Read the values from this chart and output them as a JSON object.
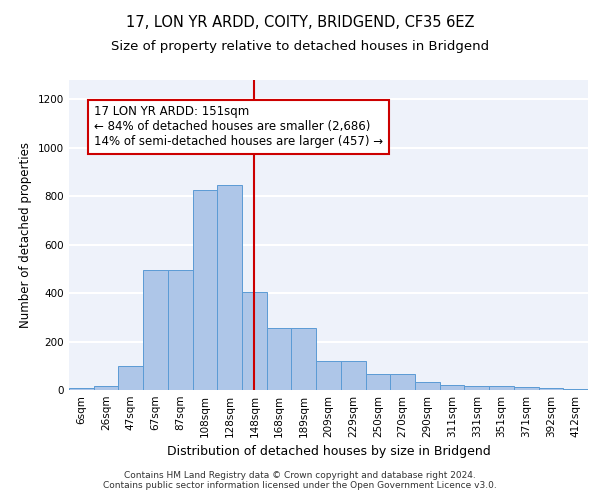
{
  "title1": "17, LON YR ARDD, COITY, BRIDGEND, CF35 6EZ",
  "title2": "Size of property relative to detached houses in Bridgend",
  "xlabel": "Distribution of detached houses by size in Bridgend",
  "ylabel": "Number of detached properties",
  "categories": [
    "6sqm",
    "26sqm",
    "47sqm",
    "67sqm",
    "87sqm",
    "108sqm",
    "128sqm",
    "148sqm",
    "168sqm",
    "189sqm",
    "209sqm",
    "229sqm",
    "250sqm",
    "270sqm",
    "290sqm",
    "311sqm",
    "331sqm",
    "351sqm",
    "371sqm",
    "392sqm",
    "412sqm"
  ],
  "values": [
    10,
    15,
    100,
    495,
    495,
    825,
    845,
    405,
    255,
    255,
    120,
    120,
    65,
    65,
    32,
    22,
    15,
    15,
    12,
    8,
    5
  ],
  "bar_color": "#aec6e8",
  "bar_edgecolor": "#5b9bd5",
  "vline_color": "#cc0000",
  "annotation_text": "17 LON YR ARDD: 151sqm\n← 84% of detached houses are smaller (2,686)\n14% of semi-detached houses are larger (457) →",
  "annotation_box_color": "#ffffff",
  "annotation_box_edgecolor": "#cc0000",
  "ylim": [
    0,
    1280
  ],
  "yticks": [
    0,
    200,
    400,
    600,
    800,
    1000,
    1200
  ],
  "bg_color": "#eef2fa",
  "grid_color": "#ffffff",
  "footer1": "Contains HM Land Registry data © Crown copyright and database right 2024.",
  "footer2": "Contains public sector information licensed under the Open Government Licence v3.0.",
  "title1_fontsize": 10.5,
  "title2_fontsize": 9.5,
  "axis_label_fontsize": 8.5,
  "tick_fontsize": 7.5,
  "annotation_fontsize": 8.5,
  "footer_fontsize": 6.5
}
